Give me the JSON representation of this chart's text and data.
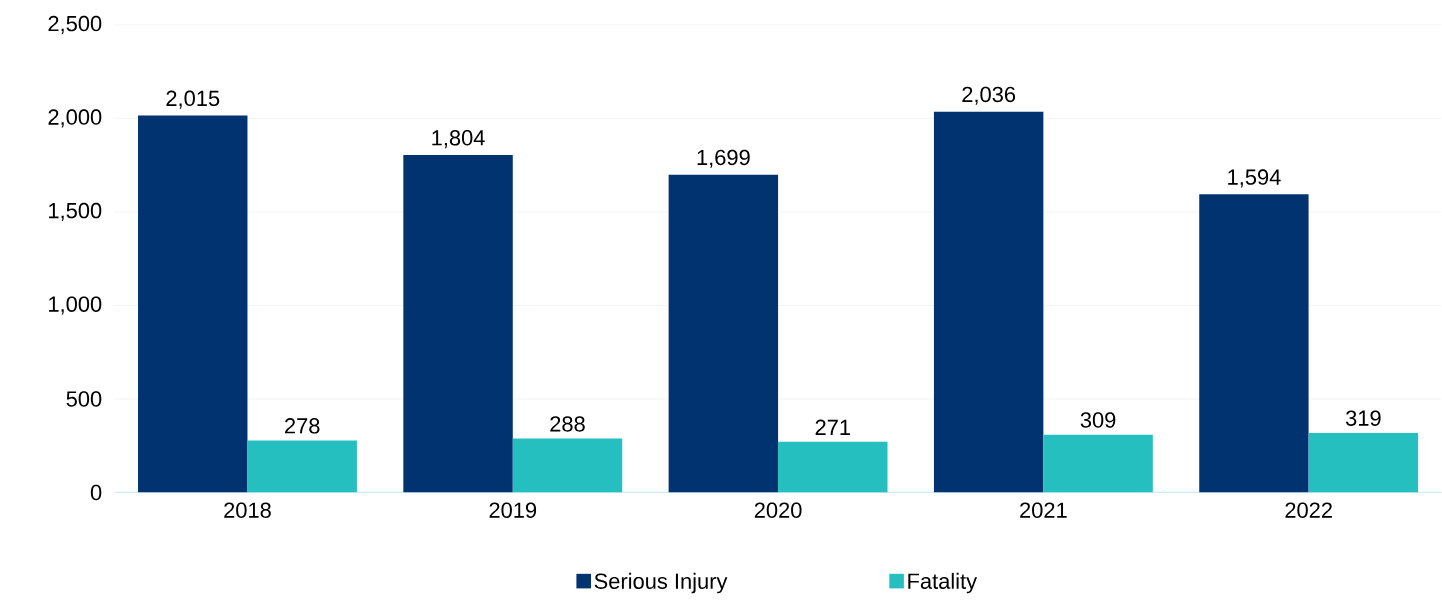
{
  "chart_data": {
    "type": "bar",
    "categories": [
      "2018",
      "2019",
      "2020",
      "2021",
      "2022"
    ],
    "series": [
      {
        "name": "Serious Injury",
        "color": "#003370",
        "values": [
          2015,
          1804,
          1699,
          2036,
          1594
        ],
        "value_labels": [
          "2,015",
          "1,804",
          "1,699",
          "2,036",
          "1,594"
        ]
      },
      {
        "name": "Fatality",
        "color": "#26bfbf",
        "values": [
          278,
          288,
          271,
          309,
          319
        ],
        "value_labels": [
          "278",
          "288",
          "271",
          "309",
          "319"
        ]
      }
    ],
    "ylim": [
      0,
      2500
    ],
    "yticks": [
      {
        "value": 0,
        "label": "0"
      },
      {
        "value": 500,
        "label": "500"
      },
      {
        "value": 1000,
        "label": "1,000"
      },
      {
        "value": 1500,
        "label": "1,500"
      },
      {
        "value": 2000,
        "label": "2,000"
      },
      {
        "value": 2500,
        "label": "2,500"
      }
    ],
    "grid": "y",
    "legend": "bottom"
  }
}
